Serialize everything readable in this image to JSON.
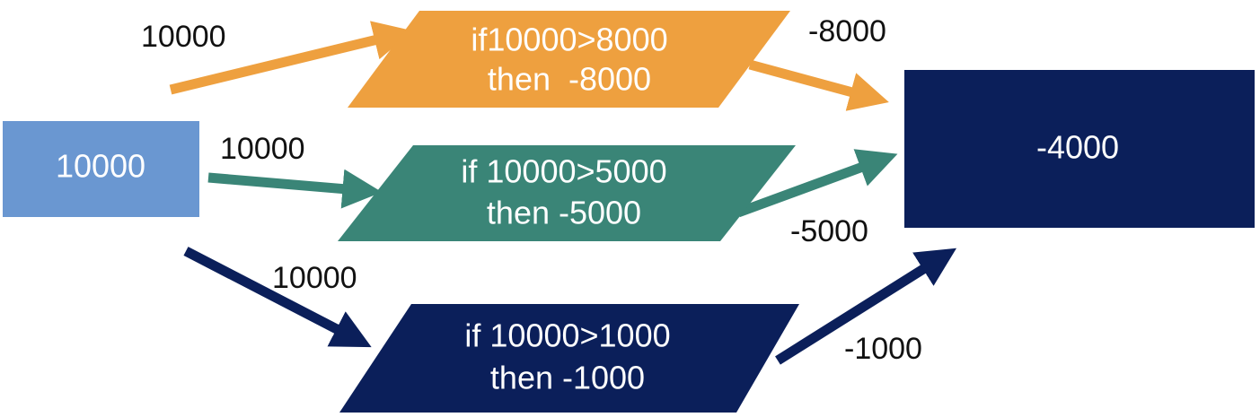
{
  "colors": {
    "input": "#6a97d1",
    "orange": "#eea03f",
    "green": "#3a8577",
    "navy": "#0b1f5a",
    "output": "#0b1f5a"
  },
  "input_node": {
    "value": "10000"
  },
  "conditions": [
    {
      "id": "c8000",
      "line1": "if10000>8000",
      "line2": "then  -8000",
      "color_key": "orange"
    },
    {
      "id": "c5000",
      "line1": "if 10000>5000",
      "line2": "then -5000",
      "color_key": "green"
    },
    {
      "id": "c1000",
      "line1": "if 10000>1000",
      "line2": "then -1000",
      "color_key": "navy"
    }
  ],
  "output_node": {
    "value": "-4000"
  },
  "edge_labels": {
    "in_top": "10000",
    "in_mid": "10000",
    "in_bot": "10000",
    "out_top": "-8000",
    "out_mid": "-5000",
    "out_bot": "-1000"
  }
}
